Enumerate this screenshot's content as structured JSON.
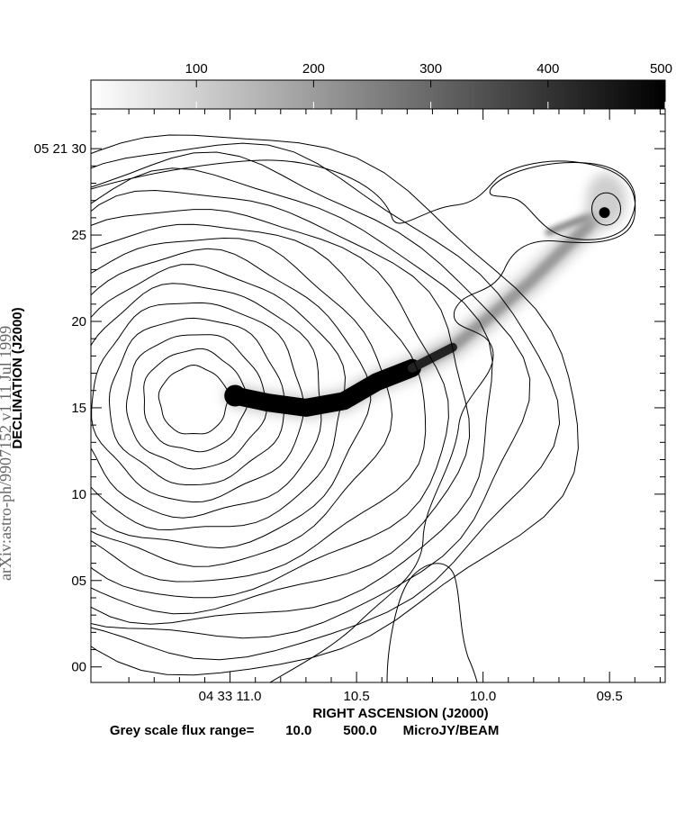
{
  "side_stamp": "arXiv:astro-ph/9907152 v1  11 Jul 1999",
  "colorbar": {
    "ticks": [
      {
        "value": 100,
        "label": "100"
      },
      {
        "value": 200,
        "label": "200"
      },
      {
        "value": 300,
        "label": "300"
      },
      {
        "value": 400,
        "label": "400"
      },
      {
        "value": 500,
        "label": "500"
      }
    ],
    "range": [
      10.0,
      500.0
    ],
    "gradient": [
      "#ffffff",
      "#000000"
    ]
  },
  "caption": {
    "label": "Grey scale flux range=",
    "min": "10.0",
    "max": "500.0",
    "unit": "MicroJY/BEAM"
  },
  "chart_data": {
    "type": "heatmap",
    "description_kind": "radio contour map over grey-scale image",
    "xlabel": "RIGHT ASCENSION (J2000)",
    "ylabel": "DECLINATION (J2000)",
    "x_range_seconds": [
      11.55,
      9.28
    ],
    "y_range_arcsec": [
      -0.9,
      32.3
    ],
    "x_ticks": [
      {
        "value": 11.0,
        "label": "04 33 11.0"
      },
      {
        "value": 10.5,
        "label": "10.5"
      },
      {
        "value": 10.0,
        "label": "10.0"
      },
      {
        "value": 9.5,
        "label": "09.5"
      }
    ],
    "y_ticks": [
      {
        "value": 30,
        "label": "05 21 30"
      },
      {
        "value": 25,
        "label": "25"
      },
      {
        "value": 20,
        "label": "20"
      },
      {
        "value": 15,
        "label": "15"
      },
      {
        "value": 10,
        "label": "10"
      },
      {
        "value": 5,
        "label": "05"
      },
      {
        "value": 0,
        "label": "00"
      }
    ],
    "core": {
      "ra_s": 10.98,
      "dec_as": 15.7
    },
    "jet": [
      {
        "ra_s": 10.98,
        "dec_as": 15.7
      },
      {
        "ra_s": 10.85,
        "dec_as": 15.3
      },
      {
        "ra_s": 10.7,
        "dec_as": 15.0
      },
      {
        "ra_s": 10.55,
        "dec_as": 15.4
      },
      {
        "ra_s": 10.42,
        "dec_as": 16.5
      },
      {
        "ra_s": 10.28,
        "dec_as": 17.3
      },
      {
        "ra_s": 10.12,
        "dec_as": 18.5
      },
      {
        "ra_s": 9.98,
        "dec_as": 20.2
      },
      {
        "ra_s": 9.82,
        "dec_as": 22.2
      },
      {
        "ra_s": 9.68,
        "dec_as": 24.2
      },
      {
        "ra_s": 9.55,
        "dec_as": 26.0
      }
    ],
    "hotspot": {
      "ra_s": 9.52,
      "dec_as": 26.3
    },
    "contour_levels": 16
  }
}
